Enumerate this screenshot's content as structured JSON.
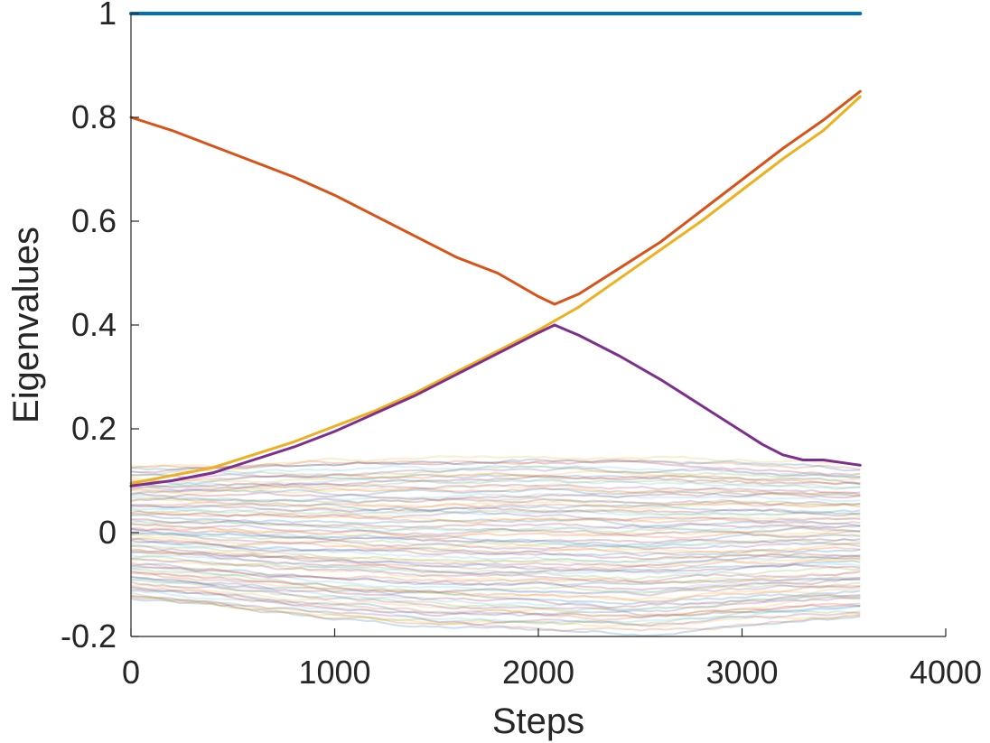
{
  "chart_data": {
    "type": "line",
    "title": "",
    "xlabel": "Steps",
    "ylabel": "Eigenvalues",
    "xlim": [
      0,
      4000
    ],
    "ylim": [
      -0.2,
      1
    ],
    "x_ticks": [
      0,
      1000,
      2000,
      3000,
      4000
    ],
    "x_tick_labels": [
      "0",
      "1000",
      "2000",
      "3000",
      "4000"
    ],
    "y_ticks": [
      -0.2,
      0,
      0.2,
      0.4,
      0.6,
      0.8,
      1
    ],
    "y_tick_labels": [
      "-0.2",
      "0",
      "0.2",
      "0.4",
      "0.6",
      "0.8",
      "1"
    ],
    "grid": false,
    "legend": "none",
    "series": [
      {
        "color": "#0072BD",
        "x": [
          0,
          3580
        ],
        "values": [
          1.0,
          1.0
        ]
      },
      {
        "color": "#D95319",
        "x": [
          0,
          200,
          400,
          600,
          800,
          1000,
          1200,
          1400,
          1600,
          1800,
          2000,
          2080,
          2200,
          2400,
          2600,
          2800,
          3000,
          3200,
          3400,
          3580
        ],
        "values": [
          0.8,
          0.775,
          0.745,
          0.715,
          0.685,
          0.65,
          0.61,
          0.57,
          0.53,
          0.5,
          0.455,
          0.44,
          0.46,
          0.51,
          0.56,
          0.62,
          0.68,
          0.74,
          0.795,
          0.85
        ]
      },
      {
        "color": "#EDB120",
        "x": [
          0,
          200,
          400,
          600,
          800,
          1000,
          1200,
          1400,
          1600,
          1800,
          2000,
          2200,
          2400,
          2600,
          2800,
          3000,
          3200,
          3400,
          3580
        ],
        "values": [
          0.095,
          0.11,
          0.125,
          0.15,
          0.175,
          0.205,
          0.235,
          0.27,
          0.31,
          0.35,
          0.39,
          0.435,
          0.49,
          0.545,
          0.6,
          0.66,
          0.72,
          0.775,
          0.84
        ]
      },
      {
        "color": "#7E2F8E",
        "x": [
          0,
          200,
          400,
          600,
          800,
          1000,
          1200,
          1400,
          1600,
          1800,
          2000,
          2080,
          2200,
          2400,
          2600,
          2800,
          3000,
          3100,
          3200,
          3300,
          3400,
          3580
        ],
        "values": [
          0.09,
          0.1,
          0.115,
          0.14,
          0.165,
          0.195,
          0.23,
          0.265,
          0.305,
          0.345,
          0.385,
          0.4,
          0.38,
          0.34,
          0.295,
          0.245,
          0.195,
          0.17,
          0.15,
          0.14,
          0.14,
          0.13
        ]
      }
    ],
    "bulk_band": {
      "x_end": 3580,
      "count": 80,
      "envelope_x": [
        0,
        500,
        1000,
        1500,
        2000,
        2500,
        3000,
        3580
      ],
      "envelope_upper": [
        0.13,
        0.135,
        0.14,
        0.145,
        0.15,
        0.145,
        0.14,
        0.13
      ],
      "envelope_lower": [
        -0.13,
        -0.15,
        -0.17,
        -0.185,
        -0.19,
        -0.195,
        -0.18,
        -0.165
      ],
      "colors": [
        "#0072BD",
        "#D95319",
        "#EDB120",
        "#7E2F8E",
        "#77AC30",
        "#4DBEEE",
        "#A2142F"
      ]
    }
  }
}
